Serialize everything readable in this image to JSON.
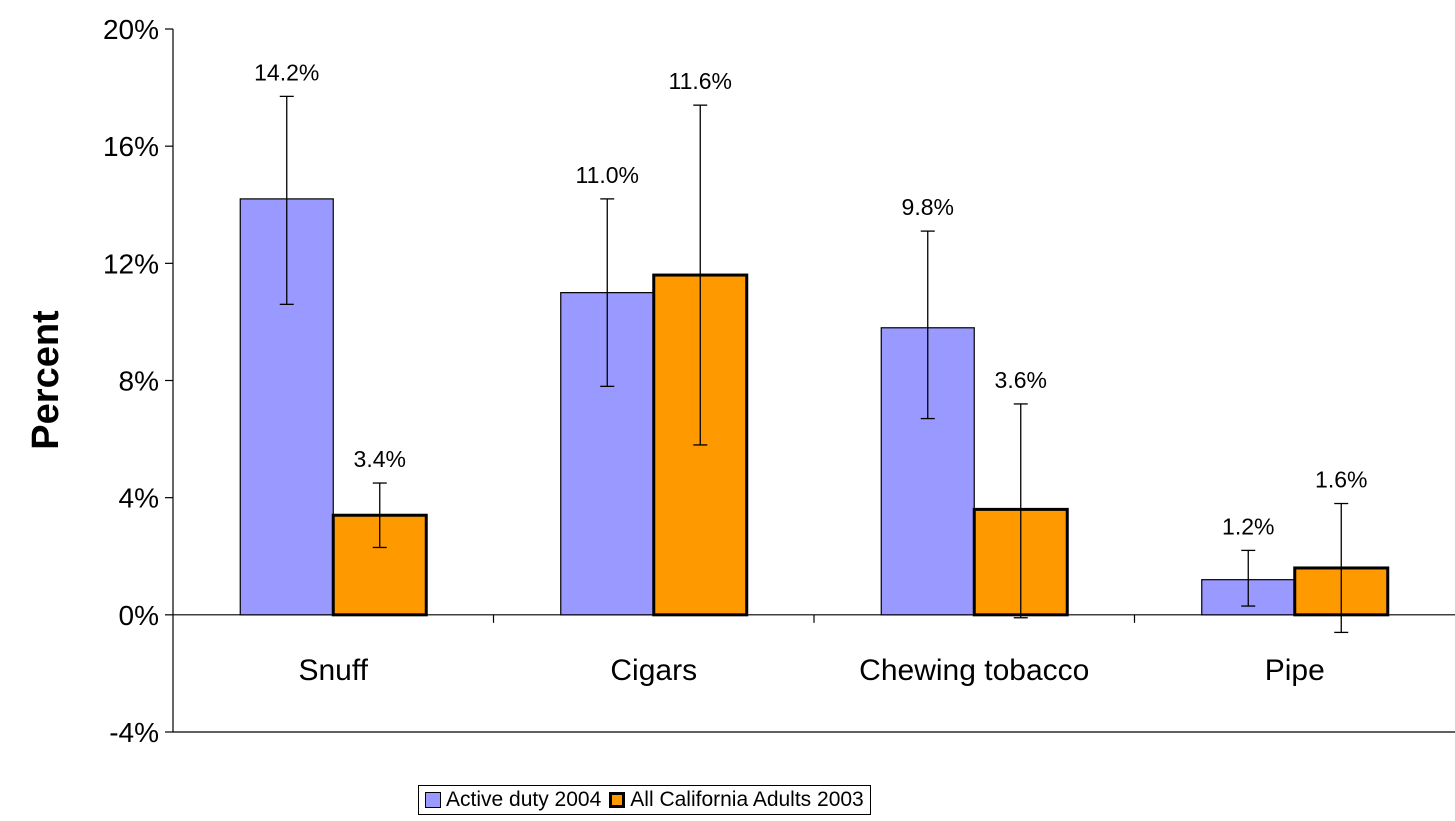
{
  "chart_data": {
    "type": "bar",
    "categories": [
      "Snuff",
      "Cigars",
      "Chewing tobacco",
      "Pipe"
    ],
    "series": [
      {
        "name": "Active duty 2004",
        "color": "#9999ff",
        "values": [
          14.2,
          11.0,
          9.8,
          1.2
        ],
        "labels": [
          "14.2%",
          "11.0%",
          "9.8%",
          "1.2%"
        ],
        "error_low": [
          10.6,
          7.8,
          6.7,
          0.3
        ],
        "error_high": [
          17.7,
          14.2,
          13.1,
          2.2
        ]
      },
      {
        "name": "All California Adults 2003",
        "color": "#ff9900",
        "values": [
          3.4,
          11.6,
          3.6,
          1.6
        ],
        "labels": [
          "3.4%",
          "11.6%",
          "3.6%",
          "1.6%"
        ],
        "error_low": [
          2.3,
          5.8,
          -0.1,
          -0.6
        ],
        "error_high": [
          4.5,
          17.4,
          7.2,
          3.8
        ]
      }
    ],
    "ylabel": "Percent",
    "ylim": [
      -4,
      20
    ],
    "yticks": [
      20,
      16,
      12,
      8,
      4,
      0,
      -4
    ],
    "ytick_labels": [
      "20%",
      "16%",
      "12%",
      "8%",
      "4%",
      "0%",
      "-4%"
    ],
    "grid": false,
    "legend_position": "bottom"
  }
}
